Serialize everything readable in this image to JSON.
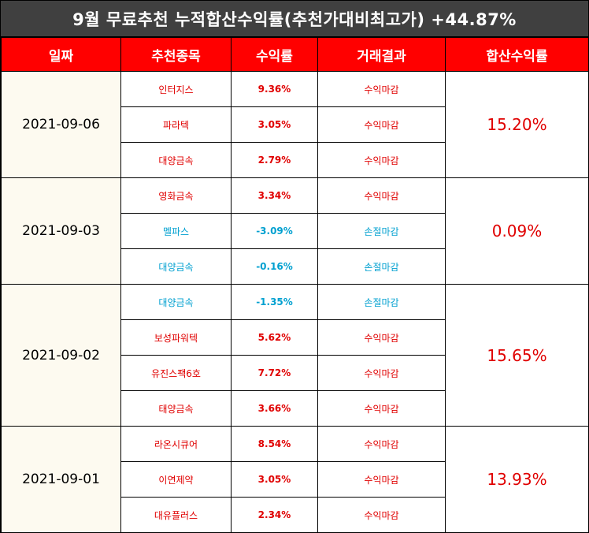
{
  "title": "9월 무료추천 누적합산수익률(추천가대비최고가) +44.87%",
  "headers": [
    "일짜",
    "추천종목",
    "수익률",
    "거래결과",
    "합산수익률"
  ],
  "groups": [
    {
      "date": "2021-09-06",
      "total": "15.20%",
      "rows": [
        {
          "name": "인터지스",
          "rate": "9.36%",
          "result": "수익마감",
          "tone": "pos"
        },
        {
          "name": "파라텍",
          "rate": "3.05%",
          "result": "수익마감",
          "tone": "pos"
        },
        {
          "name": "대양금속",
          "rate": "2.79%",
          "result": "수익마감",
          "tone": "pos"
        }
      ]
    },
    {
      "date": "2021-09-03",
      "total": "0.09%",
      "rows": [
        {
          "name": "영화금속",
          "rate": "3.34%",
          "result": "수익마감",
          "tone": "pos"
        },
        {
          "name": "멜파스",
          "rate": "-3.09%",
          "result": "손절마감",
          "tone": "neg"
        },
        {
          "name": "대양금속",
          "rate": "-0.16%",
          "result": "손절마감",
          "tone": "neg"
        }
      ]
    },
    {
      "date": "2021-09-02",
      "total": "15.65%",
      "rows": [
        {
          "name": "대양금속",
          "rate": "-1.35%",
          "result": "손절마감",
          "tone": "neg"
        },
        {
          "name": "보성파워텍",
          "rate": "5.62%",
          "result": "수익마감",
          "tone": "pos"
        },
        {
          "name": "유진스팩6호",
          "rate": "7.72%",
          "result": "수익마감",
          "tone": "pos"
        },
        {
          "name": "태양금속",
          "rate": "3.66%",
          "result": "수익마감",
          "tone": "pos"
        }
      ]
    },
    {
      "date": "2021-09-01",
      "total": "13.93%",
      "rows": [
        {
          "name": "라온시큐어",
          "rate": "8.54%",
          "result": "수익마감",
          "tone": "pos"
        },
        {
          "name": "이연제약",
          "rate": "3.05%",
          "result": "수익마감",
          "tone": "pos"
        },
        {
          "name": "대유플러스",
          "rate": "2.34%",
          "result": "수익마감",
          "tone": "pos"
        }
      ]
    }
  ],
  "colors": {
    "header_bg": "#ff0000",
    "title_bg": "#404040",
    "profit": "#e00000",
    "loss": "#00a0d0",
    "date_bg": "#fdfaf0"
  }
}
